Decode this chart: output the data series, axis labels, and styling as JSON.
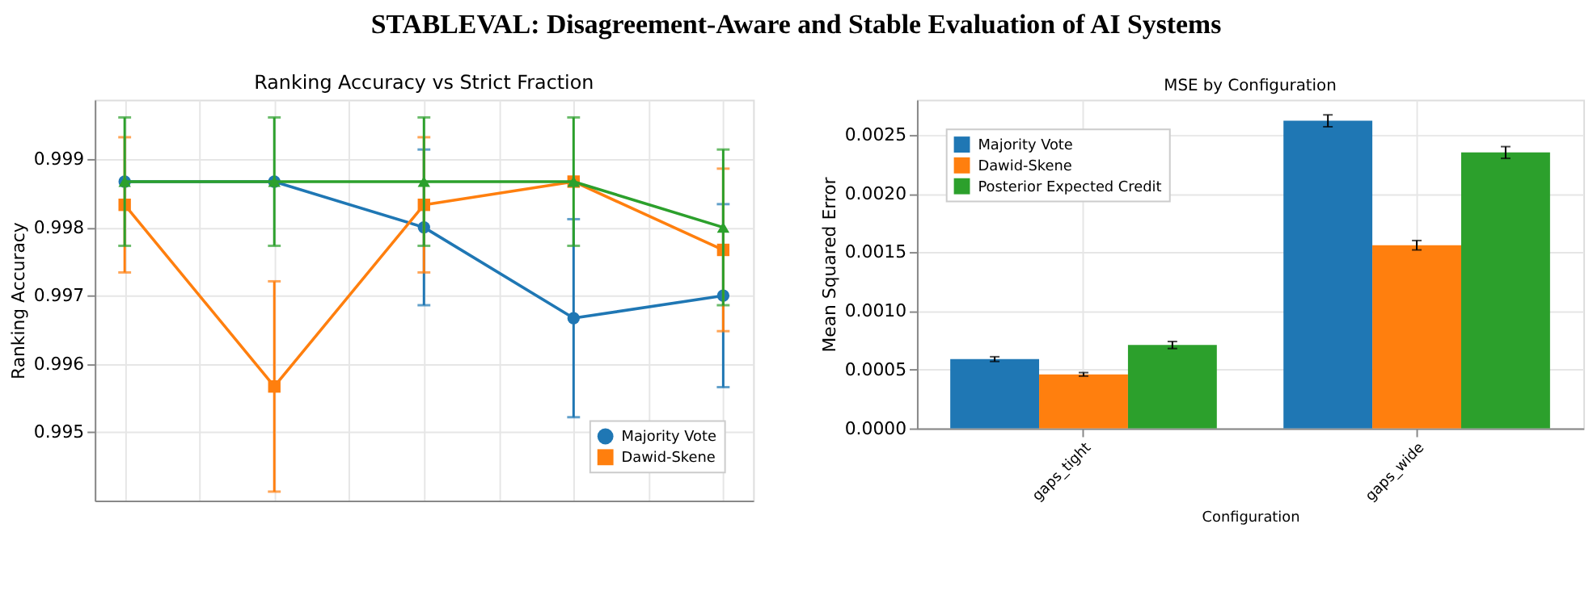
{
  "chart_data": [
    {
      "type": "line",
      "title": "Ranking Accuracy vs Strict Fraction",
      "ylabel": "Ranking Accuracy",
      "annotations": [
        "STABLEVAL: Disagreement-Aware and Stable Evaluation of AI Systems"
      ],
      "categories": [
        null,
        null,
        null,
        null,
        null
      ],
      "ylim": [
        0.994,
        0.99987
      ],
      "yticks": [
        0.995,
        0.996,
        0.997,
        0.998,
        0.999
      ],
      "grid": true,
      "legend": "bottom right",
      "tick_labels": "y",
      "line_style": "solid",
      "series": [
        {
          "name": "Majority Vote",
          "color": "#1f77b4",
          "marker": "circle",
          "values": [
            0.99867,
            0.99867,
            0.998,
            0.99667,
            0.997
          ],
          "errors": [
            null,
            null,
            0.00114,
            0.00145,
            0.00134
          ]
        },
        {
          "name": "Dawid-Skene",
          "color": "#ff7f0e",
          "marker": "square",
          "values": [
            0.99833,
            0.99567,
            0.99833,
            0.99867,
            0.99767
          ],
          "errors": [
            0.00099,
            0.00154,
            0.00099,
            null,
            0.00119
          ]
        },
        {
          "color": "#2ca02c",
          "marker": "triangle",
          "values": [
            0.99867,
            0.99867,
            0.99867,
            0.99867,
            0.998
          ],
          "errors": [
            0.00094,
            0.00094,
            0.00094,
            0.00094,
            0.00114
          ]
        }
      ]
    },
    {
      "type": "bar",
      "title": "MSE by Configuration",
      "xlabel": "Configuration",
      "ylabel": "Mean Squared Error",
      "categories": [
        "gaps_tight",
        "gaps_wide"
      ],
      "ylim": [
        0,
        0.0028
      ],
      "yticks": [
        {
          "value": 0,
          "label": "0.0000"
        },
        0.0005,
        {
          "value": 0.001,
          "label": "0.0010"
        },
        0.0015,
        {
          "value": 0.002,
          "label": "0.0020"
        },
        0.0025
      ],
      "grid": true,
      "legend": "top left",
      "series": [
        {
          "name": "Majority Vote",
          "color": "#1f77b4",
          "values": [
            0.00059,
            0.00262
          ],
          "errors": [
            2e-05,
            5e-05
          ]
        },
        {
          "name": "Dawid-Skene",
          "color": "#ff7f0e",
          "values": [
            0.00046,
            0.00156
          ],
          "errors": [
            1.5e-05,
            4e-05
          ]
        },
        {
          "name": "Posterior Expected Credit",
          "color": "#2ca02c",
          "values": [
            0.00071,
            0.00235
          ],
          "errors": [
            3e-05,
            5e-05
          ]
        }
      ]
    }
  ]
}
